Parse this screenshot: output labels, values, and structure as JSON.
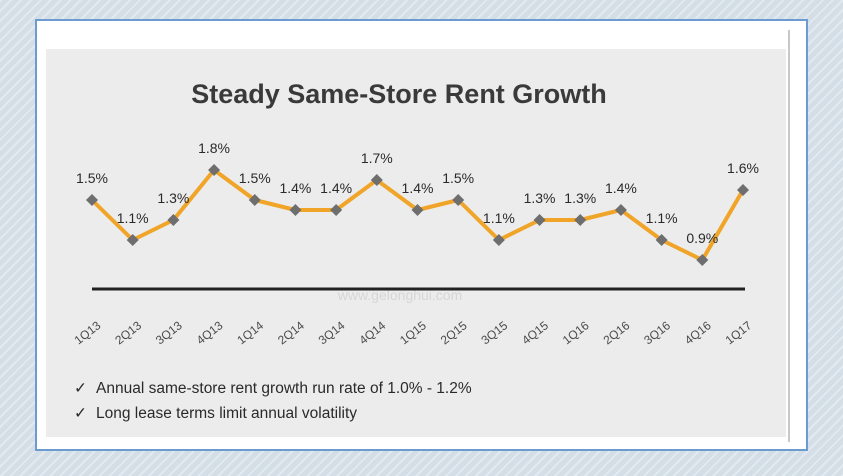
{
  "chart_data": {
    "type": "line",
    "title": "Steady Same-Store Rent Growth",
    "categories": [
      "1Q13",
      "2Q13",
      "3Q13",
      "4Q13",
      "1Q14",
      "2Q14",
      "3Q14",
      "4Q14",
      "1Q15",
      "2Q15",
      "3Q15",
      "4Q15",
      "1Q16",
      "2Q16",
      "3Q16",
      "4Q16",
      "1Q17"
    ],
    "values": [
      1.5,
      1.1,
      1.3,
      1.8,
      1.5,
      1.4,
      1.4,
      1.7,
      1.4,
      1.5,
      1.1,
      1.3,
      1.3,
      1.4,
      1.1,
      0.9,
      1.6
    ],
    "data_labels": [
      "1.5%",
      "1.1%",
      "1.3%",
      "1.8%",
      "1.5%",
      "1.4%",
      "1.4%",
      "1.7%",
      "1.4%",
      "1.5%",
      "1.1%",
      "1.3%",
      "1.3%",
      "1.4%",
      "1.1%",
      "0.9%",
      "1.6%"
    ],
    "ylim": [
      0.4,
      2.2
    ],
    "xlabel": "",
    "ylabel": "",
    "grid": false,
    "colors": {
      "line": "#f0a428",
      "marker": "#6e6e6e",
      "axis": "#222222"
    }
  },
  "bullets": [
    {
      "mark": "✓",
      "text": "Annual same-store rent growth run rate of 1.0% - 1.2%"
    },
    {
      "mark": "✓",
      "text": "Long lease terms limit annual volatility"
    }
  ],
  "watermark": {
    "text": "www.gelonghui.com"
  }
}
